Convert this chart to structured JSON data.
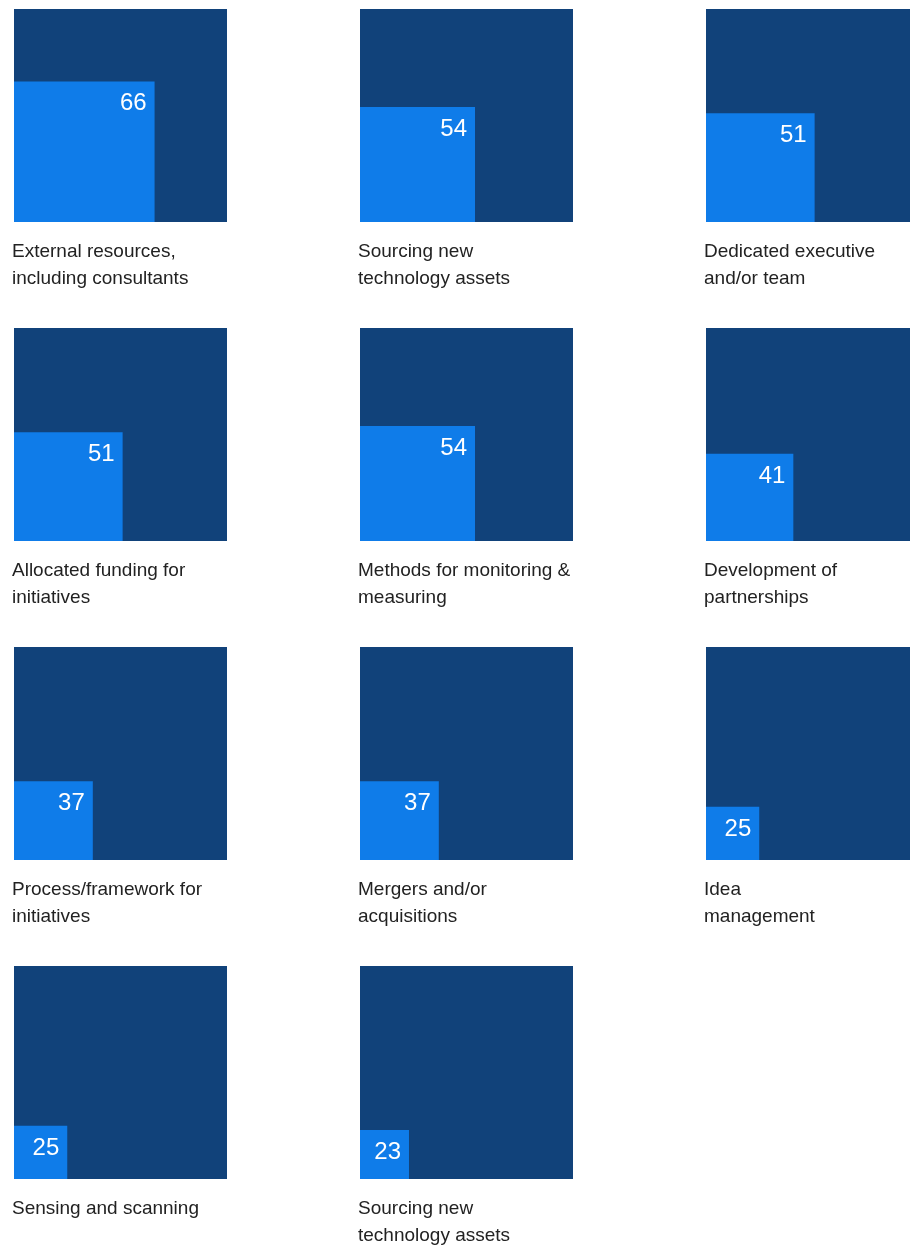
{
  "chart_data": {
    "type": "other",
    "categories": [
      "External resources,\nincluding consultants",
      "Sourcing new\ntechnology assets",
      "Dedicated executive\nand/or team",
      "Allocated funding for\ninitiatives",
      "Methods for monitoring &\nmeasuring",
      "Development of\npartnerships",
      "Process/framework for\ninitiatives",
      "Mergers and/or\nacquisitions",
      "Idea\nmanagement",
      "Sensing and scanning",
      "Sourcing new\ntechnology assets"
    ],
    "values": [
      66,
      54,
      51,
      51,
      54,
      41,
      37,
      37,
      25,
      25,
      23
    ],
    "color": "#0f7ce9",
    "data_labels": true
  }
}
